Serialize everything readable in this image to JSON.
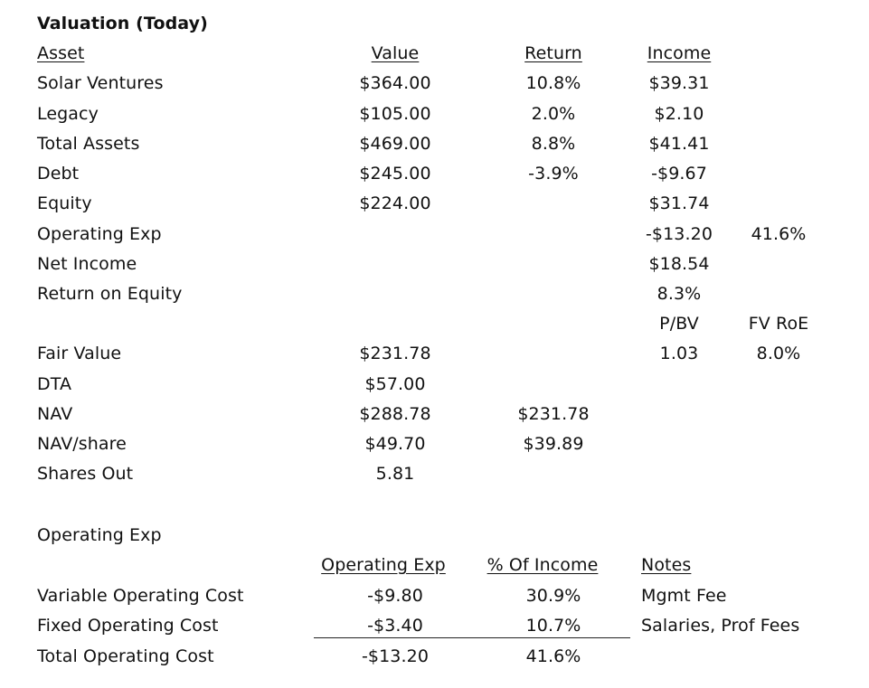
{
  "title": "Valuation (Today)",
  "headers": {
    "asset": "Asset",
    "value": "Value",
    "return": "Return",
    "income": "Income"
  },
  "rows": [
    {
      "label": "Solar Ventures",
      "value": "$364.00",
      "return": "10.8%",
      "income": "$39.31"
    },
    {
      "label": "Legacy",
      "value": "$105.00",
      "return": "2.0%",
      "income": "$2.10"
    },
    {
      "label": "Total Assets",
      "value": "$469.00",
      "return": "8.8%",
      "income": "$41.41"
    },
    {
      "label": "Debt",
      "value": "$245.00",
      "return": "-3.9%",
      "income": "-$9.67"
    },
    {
      "label": "Equity",
      "value": "$224.00",
      "return": "",
      "income": "$31.74"
    },
    {
      "label": "Operating Exp",
      "value": "",
      "return": "",
      "income": "-$13.20",
      "extra": "41.6%"
    },
    {
      "label": "Net Income",
      "value": "",
      "return": "",
      "income": "$18.54"
    },
    {
      "label": "Return on Equity",
      "value": "",
      "return": "",
      "income": "8.3%"
    }
  ],
  "ratios": {
    "pbv_label": "P/BV",
    "fvroe_label": "FV RoE",
    "pbv_value": "1.03",
    "fvroe_value": "8.0%"
  },
  "valuation": [
    {
      "label": "Fair Value",
      "value": "$231.78",
      "alt": ""
    },
    {
      "label": "DTA",
      "value": "$57.00",
      "alt": ""
    },
    {
      "label": "NAV",
      "value": "$288.78",
      "alt": "$231.78"
    },
    {
      "label": "NAV/share",
      "value": "$49.70",
      "alt": "$39.89"
    },
    {
      "label": "Shares Out",
      "value": "5.81",
      "alt": ""
    }
  ],
  "opex": {
    "section_title": "Operating Exp",
    "headers": {
      "opex": "Operating Exp",
      "pct": "% Of Income",
      "notes": "Notes"
    },
    "rows": [
      {
        "label": "Variable Operating Cost",
        "opex": "-$9.80",
        "pct": "30.9%",
        "notes": "Mgmt Fee"
      },
      {
        "label": "Fixed Operating Cost",
        "opex": "-$3.40",
        "pct": "10.7%",
        "notes": "Salaries, Prof Fees"
      },
      {
        "label": "Total Operating Cost",
        "opex": "-$13.20",
        "pct": "41.6%",
        "notes": ""
      }
    ]
  }
}
